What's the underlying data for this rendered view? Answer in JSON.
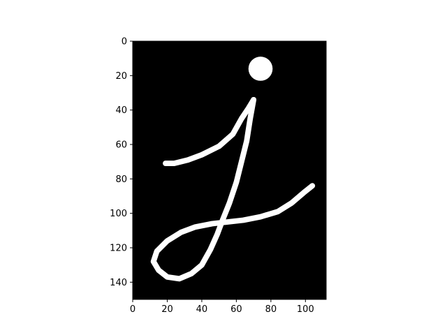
{
  "chart_data": {
    "type": "image",
    "title": "",
    "xlabel": "",
    "ylabel": "",
    "xlim": [
      0,
      112
    ],
    "ylim": [
      150,
      0
    ],
    "x_ticks": [
      0,
      20,
      40,
      60,
      80,
      100
    ],
    "y_ticks": [
      0,
      20,
      40,
      60,
      80,
      100,
      120,
      140
    ],
    "background_color": "#000000",
    "stroke_color": "#ffffff",
    "glyph_strokes": [
      {
        "name": "upper-stroke",
        "points": [
          [
            19,
            71
          ],
          [
            24,
            71
          ],
          [
            32,
            69
          ],
          [
            40,
            66
          ],
          [
            50,
            61
          ],
          [
            58,
            54
          ],
          [
            63,
            45
          ],
          [
            67,
            39
          ],
          [
            70,
            34
          ]
        ]
      },
      {
        "name": "descender-loop",
        "points": [
          [
            70,
            34
          ],
          [
            68,
            45
          ],
          [
            66,
            58
          ],
          [
            63,
            70
          ],
          [
            60,
            82
          ],
          [
            56,
            94
          ],
          [
            52,
            104
          ],
          [
            49,
            112
          ],
          [
            45,
            121
          ],
          [
            40,
            130
          ],
          [
            34,
            135
          ],
          [
            27,
            138
          ],
          [
            20,
            137
          ],
          [
            15,
            133
          ],
          [
            12,
            128
          ],
          [
            14,
            122
          ],
          [
            20,
            116
          ],
          [
            28,
            111
          ],
          [
            36,
            108
          ],
          [
            46,
            106
          ],
          [
            55,
            105
          ],
          [
            64,
            104
          ],
          [
            74,
            102
          ],
          [
            84,
            99
          ],
          [
            92,
            94
          ],
          [
            99,
            88
          ],
          [
            104,
            84
          ]
        ]
      }
    ],
    "dot": {
      "cx": 74,
      "cy": 16,
      "r": 7
    }
  }
}
